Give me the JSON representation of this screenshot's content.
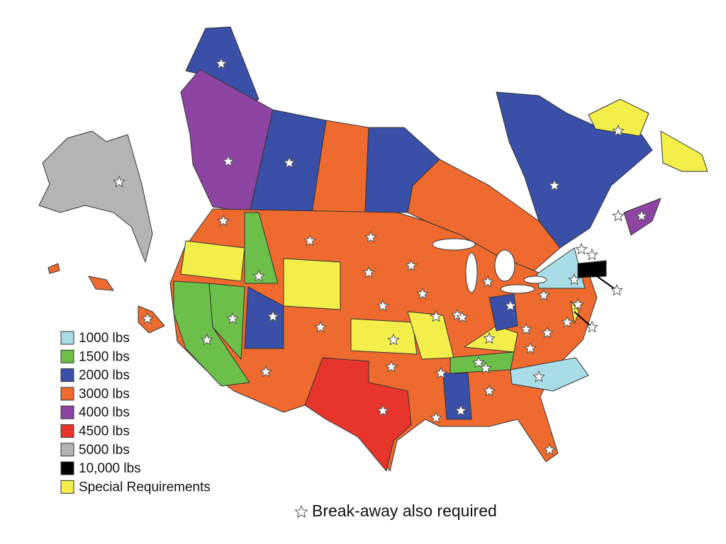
{
  "legend": {
    "items": [
      {
        "label": "1000 lbs",
        "color": "#a8dde8"
      },
      {
        "label": "1500 lbs",
        "color": "#6cc04a"
      },
      {
        "label": "2000 lbs",
        "color": "#3a4fa8"
      },
      {
        "label": "3000 lbs",
        "color": "#ef6a2e"
      },
      {
        "label": "4000 lbs",
        "color": "#8d44a3"
      },
      {
        "label": "4500 lbs",
        "color": "#e8352b"
      },
      {
        "label": "5000 lbs",
        "color": "#b4b4b4"
      },
      {
        "label": "10,000 lbs",
        "color": "#000000"
      },
      {
        "label": "Special Requirements",
        "color": "#f4ee4a"
      }
    ],
    "note": "Break-away also required"
  }
}
